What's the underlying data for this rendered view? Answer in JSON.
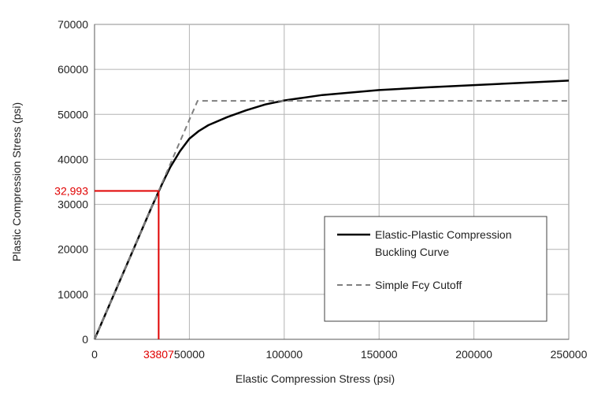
{
  "chart_data": {
    "type": "line",
    "xlabel": "Elastic Compression Stress (psi)",
    "ylabel": "Plastic Compression Stress (psi)",
    "xlim": [
      0,
      250000
    ],
    "ylim": [
      0,
      70000
    ],
    "x_ticks": [
      0,
      50000,
      100000,
      150000,
      200000,
      250000
    ],
    "y_ticks": [
      0,
      10000,
      20000,
      30000,
      40000,
      50000,
      60000,
      70000
    ],
    "x_tick_labels": [
      "0",
      "50000",
      "100000",
      "150000",
      "200000",
      "250000"
    ],
    "y_tick_labels": [
      "0",
      "10000",
      "20000",
      "30000",
      "40000",
      "50000",
      "60000",
      "70000"
    ],
    "grid": true,
    "legend_position": "bottom-right",
    "series": [
      {
        "name": "Elastic-Plastic Compression Buckling Curve",
        "name_lines": [
          "Elastic-Plastic Compression",
          "Buckling Curve"
        ],
        "style": "solid",
        "color": "#000000",
        "x": [
          0,
          10000,
          20000,
          30000,
          36000,
          40000,
          45000,
          50000,
          55000,
          60000,
          70000,
          80000,
          90000,
          100000,
          120000,
          150000,
          175000,
          200000,
          225000,
          250000
        ],
        "y": [
          0,
          9760,
          19520,
          29280,
          34900,
          38300,
          41800,
          44600,
          46300,
          47600,
          49400,
          50900,
          52200,
          53100,
          54300,
          55400,
          56000,
          56500,
          57000,
          57500
        ]
      },
      {
        "name": "Simple Fcy Cutoff",
        "style": "dashed",
        "color": "#7f7f7f",
        "x": [
          0,
          54300,
          250000
        ],
        "y": [
          0,
          53000,
          53000
        ]
      }
    ],
    "annotations": [
      {
        "type": "hline",
        "y": 32993,
        "x_end": 33807,
        "color": "#e00000"
      },
      {
        "type": "vline",
        "x": 33807,
        "y_end": 32993,
        "color": "#e00000"
      },
      {
        "type": "label",
        "text": "32,993",
        "axis": "y",
        "value": 32993,
        "color": "#e00000"
      },
      {
        "type": "label",
        "text": "33807",
        "axis": "x",
        "value": 33807,
        "color": "#e00000"
      }
    ]
  }
}
